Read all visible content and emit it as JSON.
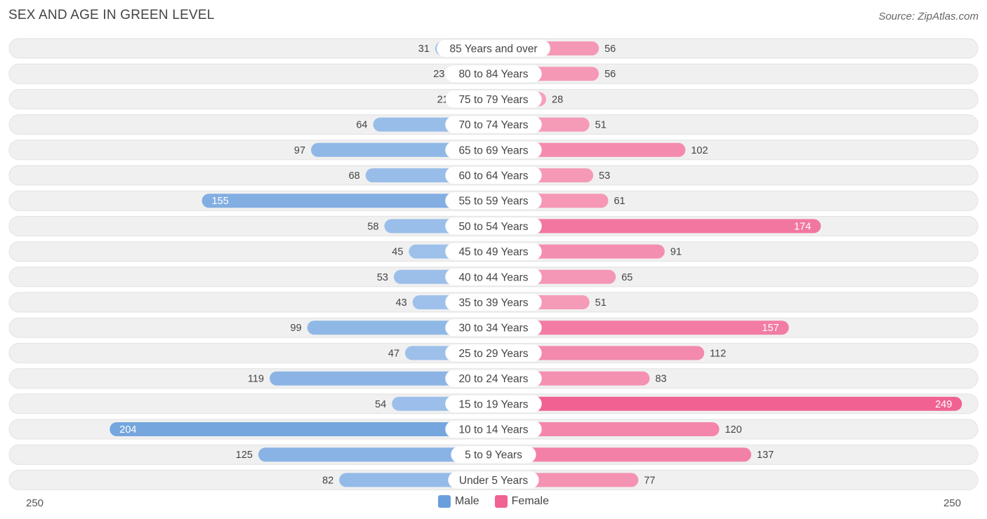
{
  "header": {
    "title": "SEX AND AGE IN GREEN LEVEL",
    "source": "Source: ZipAtlas.com"
  },
  "colors": {
    "male": "#6a9fdb",
    "male_light": "#a9c8ee",
    "female": "#f06292",
    "female_light": "#f6a8c1",
    "row_bg": "#f0f0f0",
    "label_bg": "#ffffff"
  },
  "legend": {
    "male_label": "Male",
    "female_label": "Female"
  },
  "chart_data": {
    "type": "bar",
    "orientation": "horizontal-diverging",
    "categories": [
      "85 Years and over",
      "80 to 84 Years",
      "75 to 79 Years",
      "70 to 74 Years",
      "65 to 69 Years",
      "60 to 64 Years",
      "55 to 59 Years",
      "50 to 54 Years",
      "45 to 49 Years",
      "40 to 44 Years",
      "35 to 39 Years",
      "30 to 34 Years",
      "25 to 29 Years",
      "20 to 24 Years",
      "15 to 19 Years",
      "10 to 14 Years",
      "5 to 9 Years",
      "Under 5 Years"
    ],
    "series": [
      {
        "name": "Male",
        "values": [
          31,
          23,
          21,
          64,
          97,
          68,
          155,
          58,
          45,
          53,
          43,
          99,
          47,
          119,
          54,
          204,
          125,
          82
        ]
      },
      {
        "name": "Female",
        "values": [
          56,
          56,
          28,
          51,
          102,
          53,
          61,
          174,
          91,
          65,
          51,
          157,
          112,
          83,
          249,
          120,
          137,
          77
        ]
      }
    ],
    "xlim": [
      -250,
      250
    ],
    "axis_labels": {
      "left": "250",
      "right": "250"
    },
    "legend_position": "bottom-center"
  }
}
